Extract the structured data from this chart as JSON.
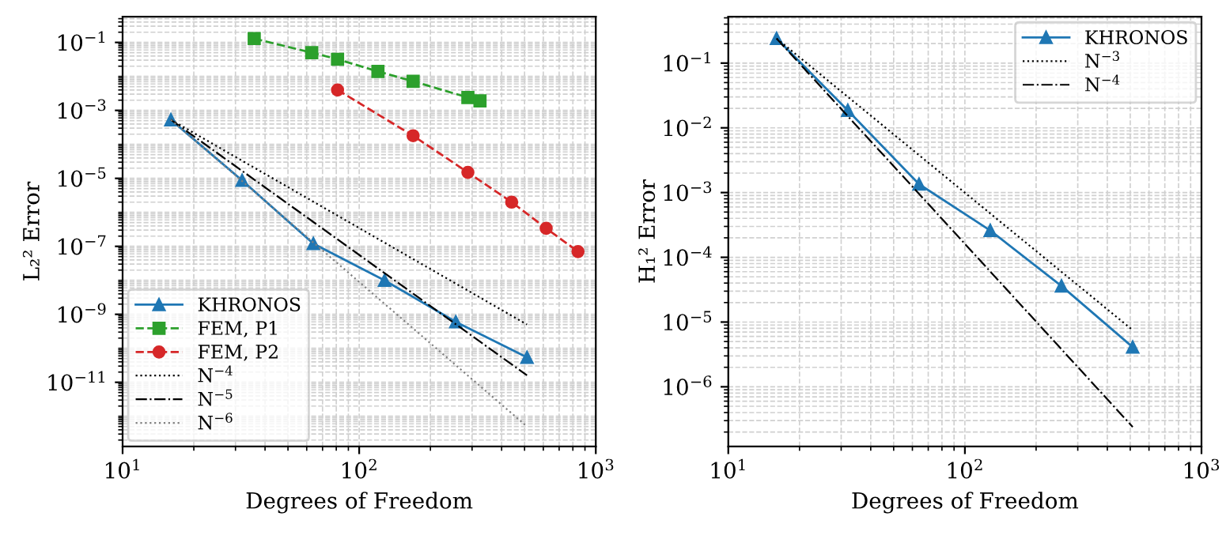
{
  "chart_data": [
    {
      "type": "line",
      "xlabel": "Degrees of Freedom",
      "ylabel": "L₂² Error",
      "log": "xy",
      "grid": true,
      "legend": "bottom left",
      "xlim": [
        10,
        1000
      ],
      "ylim": [
        1.3e-13,
        0.57
      ],
      "xticks": [
        {
          "value": 10,
          "label": "10$^{1}$"
        },
        {
          "value": 100,
          "label": "10$^{2}$"
        },
        {
          "value": 1000,
          "label": "10$^{3}$"
        }
      ],
      "yticks": [
        {
          "value": 1e-11,
          "label": "10$^{−11}$"
        },
        {
          "value": 1e-09,
          "label": "10$^{−9}$"
        },
        {
          "value": 1e-07,
          "label": "10$^{−7}$"
        },
        {
          "value": 1e-05,
          "label": "10$^{−5}$"
        },
        {
          "value": 0.001,
          "label": "10$^{−3}$"
        },
        {
          "value": 0.1,
          "label": "10$^{−1}$"
        }
      ],
      "series": [
        {
          "name": "KHRONOS",
          "color": "#1f77b4",
          "marker": "triangle",
          "line_style": "solid",
          "x": [
            16,
            32,
            64,
            128,
            256,
            512
          ],
          "values": [
            0.00053,
            8.7e-06,
            1.2e-07,
            1e-08,
            6e-10,
            5.4e-11
          ]
        },
        {
          "name": "FEM, P1",
          "color": "#2ca02c",
          "marker": "square",
          "line_style": "dashed",
          "x": [
            36,
            63,
            81,
            120,
            169,
            288,
            324
          ],
          "values": [
            0.13,
            0.05,
            0.032,
            0.014,
            0.0072,
            0.0024,
            0.0019
          ]
        },
        {
          "name": "FEM, P2",
          "color": "#d62728",
          "marker": "circle",
          "line_style": "dashed",
          "x": [
            81,
            169,
            288,
            441,
            617,
            841
          ],
          "values": [
            0.004,
            0.00018,
            1.5e-05,
            2e-06,
            3.4e-07,
            7e-08
          ]
        },
        {
          "name": "N$^{−4}$",
          "color": "#000000",
          "marker": "none",
          "line_style": "dotted",
          "x": [
            16,
            512
          ],
          "values": [
            0.00053,
            5e-10
          ]
        },
        {
          "name": "N$^{−5}$",
          "color": "#000000",
          "marker": "none",
          "line_style": "dashdot",
          "x": [
            16,
            512
          ],
          "values": [
            0.00053,
            1.6e-11
          ]
        },
        {
          "name": "N$^{−6}$",
          "color": "#808080",
          "marker": "none",
          "line_style": "dotted",
          "x": [
            16,
            512
          ],
          "values": [
            0.00053,
            5e-13
          ]
        }
      ]
    },
    {
      "type": "line",
      "xlabel": "Degrees of Freedom",
      "ylabel": "H₁² Error",
      "log": "xy",
      "grid": true,
      "legend": "top right",
      "xlim": [
        10,
        1000
      ],
      "ylim": [
        1.2e-07,
        0.52
      ],
      "xticks": [
        {
          "value": 10,
          "label": "10$^{1}$"
        },
        {
          "value": 100,
          "label": "10$^{2}$"
        },
        {
          "value": 1000,
          "label": "10$^{3}$"
        }
      ],
      "yticks": [
        {
          "value": 1e-06,
          "label": "10$^{−6}$"
        },
        {
          "value": 1e-05,
          "label": "10$^{−5}$"
        },
        {
          "value": 0.0001,
          "label": "10$^{−4}$"
        },
        {
          "value": 0.001,
          "label": "10$^{−3}$"
        },
        {
          "value": 0.01,
          "label": "10$^{−2}$"
        },
        {
          "value": 0.1,
          "label": "10$^{−1}$"
        }
      ],
      "series": [
        {
          "name": "KHRONOS",
          "color": "#1f77b4",
          "marker": "triangle",
          "line_style": "solid",
          "x": [
            16,
            32,
            64,
            128,
            256,
            512
          ],
          "values": [
            0.24,
            0.0186,
            0.00135,
            0.00026,
            3.6e-05,
            4.1e-06
          ]
        },
        {
          "name": "N$^{−3}$",
          "color": "#000000",
          "marker": "none",
          "line_style": "dotted",
          "x": [
            16,
            512
          ],
          "values": [
            0.24,
            7.5e-06
          ]
        },
        {
          "name": "N$^{−4}$",
          "color": "#000000",
          "marker": "none",
          "line_style": "dashdot",
          "x": [
            16,
            512
          ],
          "values": [
            0.24,
            2.4e-07
          ]
        }
      ]
    }
  ]
}
